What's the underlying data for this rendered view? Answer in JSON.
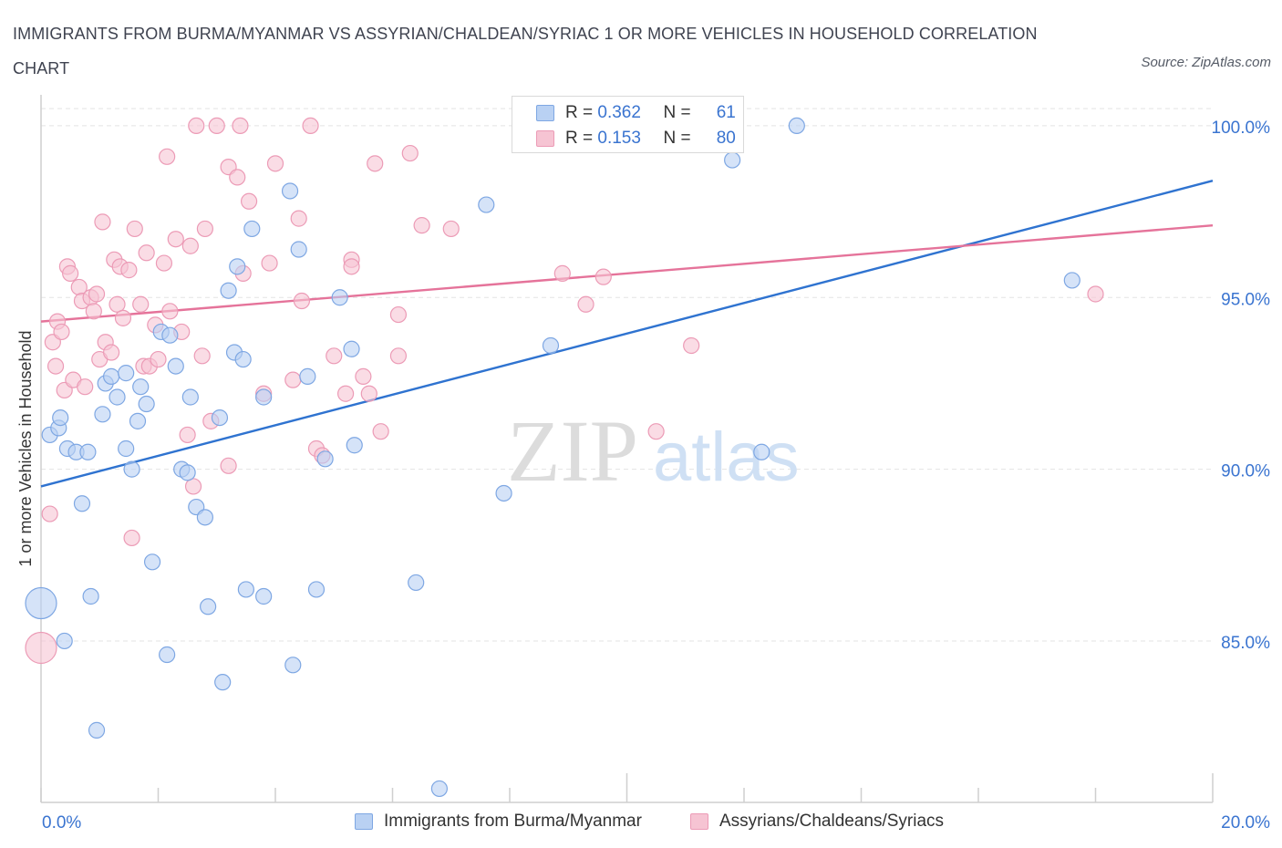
{
  "title": "IMMIGRANTS FROM BURMA/MYANMAR VS ASSYRIAN/CHALDEAN/SYRIAC 1 OR MORE VEHICLES IN HOUSEHOLD CORRELATION CHART",
  "source": "Source: ZipAtlas.com",
  "watermark": {
    "zip": "ZIP",
    "atlas": "atlas"
  },
  "colors": {
    "blue_fill": "#b9d1f3",
    "blue_stroke": "#7ea7e3",
    "blue_line": "#2f73d0",
    "pink_fill": "#f6c4d3",
    "pink_stroke": "#ec9bb6",
    "pink_line": "#e5739a",
    "axis_label": "#3a74d0",
    "grid": "#e3e3e3"
  },
  "legend": {
    "series1": {
      "r_label": "R = ",
      "r_value": "0.362",
      "n_label": "N = ",
      "n_value": "61"
    },
    "series2": {
      "r_label": "R = ",
      "r_value": "0.153",
      "n_label": "N = ",
      "n_value": "80"
    }
  },
  "chart_data": {
    "type": "scatter",
    "title": "IMMIGRANTS FROM BURMA/MYANMAR VS ASSYRIAN/CHALDEAN/SYRIAC 1 OR MORE VEHICLES IN HOUSEHOLD CORRELATION CHART",
    "xlabel": "",
    "ylabel": "1 or more Vehicles in Household",
    "xlim": [
      0,
      20
    ],
    "ylim": [
      80.3,
      100.9
    ],
    "x_tick_labels": [
      {
        "value": 0,
        "label": "0.0%"
      },
      {
        "value": 20,
        "label": "20.0%"
      }
    ],
    "y_ticks": [
      {
        "value": 85,
        "label": "85.0%"
      },
      {
        "value": 90,
        "label": "90.0%"
      },
      {
        "value": 95,
        "label": "95.0%"
      },
      {
        "value": 100,
        "label": "100.0%"
      }
    ],
    "grid": true,
    "legend_position": "bottom",
    "series": [
      {
        "name": "Immigrants from Burma/Myanmar",
        "color": "#b9d1f3",
        "trend": {
          "x": [
            0,
            20
          ],
          "y": [
            89.5,
            98.4
          ]
        },
        "points": [
          {
            "x": 0.0,
            "y": 86.1,
            "big": true
          },
          {
            "x": 0.15,
            "y": 91.0
          },
          {
            "x": 0.3,
            "y": 91.2
          },
          {
            "x": 0.33,
            "y": 91.5
          },
          {
            "x": 0.45,
            "y": 90.6
          },
          {
            "x": 0.6,
            "y": 90.5
          },
          {
            "x": 0.7,
            "y": 89.0
          },
          {
            "x": 0.85,
            "y": 86.3
          },
          {
            "x": 0.4,
            "y": 85.0
          },
          {
            "x": 0.95,
            "y": 82.4
          },
          {
            "x": 1.1,
            "y": 92.5
          },
          {
            "x": 1.2,
            "y": 92.7
          },
          {
            "x": 1.3,
            "y": 92.1
          },
          {
            "x": 1.05,
            "y": 91.6
          },
          {
            "x": 1.45,
            "y": 92.8
          },
          {
            "x": 1.45,
            "y": 90.6
          },
          {
            "x": 1.55,
            "y": 90.0
          },
          {
            "x": 1.7,
            "y": 92.4
          },
          {
            "x": 1.65,
            "y": 91.4
          },
          {
            "x": 1.8,
            "y": 91.9
          },
          {
            "x": 1.9,
            "y": 87.3
          },
          {
            "x": 2.05,
            "y": 94.0
          },
          {
            "x": 2.2,
            "y": 93.9
          },
          {
            "x": 2.3,
            "y": 93.0
          },
          {
            "x": 2.4,
            "y": 90.0
          },
          {
            "x": 2.5,
            "y": 89.9
          },
          {
            "x": 2.55,
            "y": 92.1
          },
          {
            "x": 2.65,
            "y": 88.9
          },
          {
            "x": 2.8,
            "y": 88.6
          },
          {
            "x": 2.85,
            "y": 86.0
          },
          {
            "x": 2.15,
            "y": 84.6
          },
          {
            "x": 3.05,
            "y": 91.5
          },
          {
            "x": 3.1,
            "y": 83.8
          },
          {
            "x": 3.2,
            "y": 95.2
          },
          {
            "x": 3.3,
            "y": 93.4
          },
          {
            "x": 3.35,
            "y": 95.9
          },
          {
            "x": 3.45,
            "y": 93.2
          },
          {
            "x": 3.6,
            "y": 97.0
          },
          {
            "x": 3.5,
            "y": 86.5
          },
          {
            "x": 3.8,
            "y": 92.1
          },
          {
            "x": 3.8,
            "y": 86.3
          },
          {
            "x": 4.25,
            "y": 98.1
          },
          {
            "x": 4.3,
            "y": 84.3
          },
          {
            "x": 4.4,
            "y": 96.4
          },
          {
            "x": 4.55,
            "y": 92.7
          },
          {
            "x": 4.7,
            "y": 86.5
          },
          {
            "x": 4.85,
            "y": 90.3
          },
          {
            "x": 5.1,
            "y": 95.0
          },
          {
            "x": 5.35,
            "y": 90.7
          },
          {
            "x": 5.3,
            "y": 93.5
          },
          {
            "x": 6.4,
            "y": 86.7
          },
          {
            "x": 6.8,
            "y": 80.7
          },
          {
            "x": 7.6,
            "y": 97.7
          },
          {
            "x": 7.9,
            "y": 89.3
          },
          {
            "x": 8.7,
            "y": 93.6
          },
          {
            "x": 10.4,
            "y": 100.0
          },
          {
            "x": 11.8,
            "y": 99.0
          },
          {
            "x": 12.3,
            "y": 90.5
          },
          {
            "x": 12.9,
            "y": 100.0
          },
          {
            "x": 17.6,
            "y": 95.5
          },
          {
            "x": 0.8,
            "y": 90.5
          }
        ]
      },
      {
        "name": "Assyrians/Chaldeans/Syriacs",
        "color": "#f6c4d3",
        "trend": {
          "x": [
            0,
            20
          ],
          "y": [
            94.3,
            97.1
          ]
        },
        "points": [
          {
            "x": 0.0,
            "y": 84.8,
            "big": true
          },
          {
            "x": 0.15,
            "y": 88.7
          },
          {
            "x": 0.2,
            "y": 93.7
          },
          {
            "x": 0.25,
            "y": 93.0
          },
          {
            "x": 0.28,
            "y": 94.3
          },
          {
            "x": 0.35,
            "y": 94.0
          },
          {
            "x": 0.4,
            "y": 92.3
          },
          {
            "x": 0.45,
            "y": 95.9
          },
          {
            "x": 0.5,
            "y": 95.7
          },
          {
            "x": 0.55,
            "y": 92.6
          },
          {
            "x": 0.65,
            "y": 95.3
          },
          {
            "x": 0.7,
            "y": 94.9
          },
          {
            "x": 0.75,
            "y": 92.4
          },
          {
            "x": 0.85,
            "y": 95.0
          },
          {
            "x": 0.9,
            "y": 94.6
          },
          {
            "x": 0.95,
            "y": 95.1
          },
          {
            "x": 1.0,
            "y": 93.2
          },
          {
            "x": 1.05,
            "y": 97.2
          },
          {
            "x": 1.1,
            "y": 93.7
          },
          {
            "x": 1.2,
            "y": 93.4
          },
          {
            "x": 1.25,
            "y": 96.1
          },
          {
            "x": 1.3,
            "y": 94.8
          },
          {
            "x": 1.35,
            "y": 95.9
          },
          {
            "x": 1.4,
            "y": 94.4
          },
          {
            "x": 1.5,
            "y": 95.8
          },
          {
            "x": 1.55,
            "y": 88.0
          },
          {
            "x": 1.6,
            "y": 97.0
          },
          {
            "x": 1.7,
            "y": 94.8
          },
          {
            "x": 1.75,
            "y": 93.0
          },
          {
            "x": 1.8,
            "y": 96.3
          },
          {
            "x": 1.85,
            "y": 93.0
          },
          {
            "x": 1.95,
            "y": 94.2
          },
          {
            "x": 2.0,
            "y": 93.2
          },
          {
            "x": 2.1,
            "y": 96.0
          },
          {
            "x": 2.15,
            "y": 99.1
          },
          {
            "x": 2.2,
            "y": 94.6
          },
          {
            "x": 2.3,
            "y": 96.7
          },
          {
            "x": 2.4,
            "y": 94.0
          },
          {
            "x": 2.5,
            "y": 91.0
          },
          {
            "x": 2.55,
            "y": 96.5
          },
          {
            "x": 2.6,
            "y": 89.5
          },
          {
            "x": 2.65,
            "y": 100.0
          },
          {
            "x": 2.75,
            "y": 93.3
          },
          {
            "x": 2.8,
            "y": 97.0
          },
          {
            "x": 2.9,
            "y": 91.4
          },
          {
            "x": 3.0,
            "y": 100.0
          },
          {
            "x": 3.2,
            "y": 90.1
          },
          {
            "x": 3.2,
            "y": 98.8
          },
          {
            "x": 3.35,
            "y": 98.5
          },
          {
            "x": 3.4,
            "y": 100.0
          },
          {
            "x": 3.45,
            "y": 95.7
          },
          {
            "x": 3.55,
            "y": 97.8
          },
          {
            "x": 3.8,
            "y": 92.2
          },
          {
            "x": 3.9,
            "y": 96.0
          },
          {
            "x": 4.0,
            "y": 98.9
          },
          {
            "x": 4.3,
            "y": 92.6
          },
          {
            "x": 4.4,
            "y": 97.3
          },
          {
            "x": 4.45,
            "y": 94.9
          },
          {
            "x": 4.6,
            "y": 100.0
          },
          {
            "x": 4.7,
            "y": 90.6
          },
          {
            "x": 4.8,
            "y": 90.4
          },
          {
            "x": 5.0,
            "y": 93.3
          },
          {
            "x": 5.2,
            "y": 92.2
          },
          {
            "x": 5.3,
            "y": 96.1
          },
          {
            "x": 5.3,
            "y": 95.9
          },
          {
            "x": 5.5,
            "y": 92.7
          },
          {
            "x": 5.6,
            "y": 92.2
          },
          {
            "x": 5.7,
            "y": 98.9
          },
          {
            "x": 5.8,
            "y": 91.1
          },
          {
            "x": 6.1,
            "y": 93.3
          },
          {
            "x": 6.1,
            "y": 94.5
          },
          {
            "x": 6.3,
            "y": 99.2
          },
          {
            "x": 6.5,
            "y": 97.1
          },
          {
            "x": 7.0,
            "y": 97.0
          },
          {
            "x": 8.9,
            "y": 95.7
          },
          {
            "x": 9.3,
            "y": 94.8
          },
          {
            "x": 9.6,
            "y": 95.6
          },
          {
            "x": 10.5,
            "y": 91.1
          },
          {
            "x": 11.1,
            "y": 93.6
          },
          {
            "x": 18.0,
            "y": 95.1
          }
        ]
      }
    ]
  }
}
